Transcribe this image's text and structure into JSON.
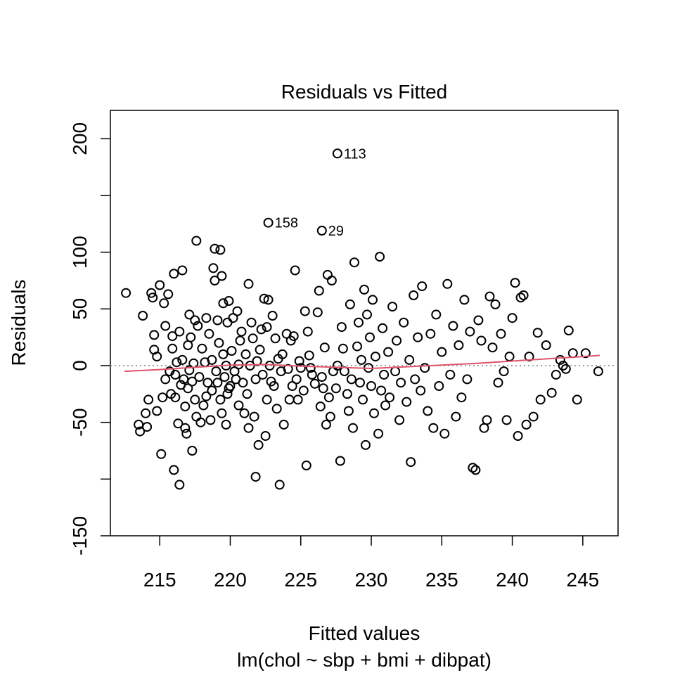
{
  "chart_data": {
    "type": "scatter",
    "title": "Residuals vs Fitted",
    "xlabel": "Fitted values",
    "subtitle": "lm(chol ~ sbp + bmi + dibpat)",
    "ylabel": "Residuals",
    "xlim": [
      211.5,
      247.5
    ],
    "ylim": [
      -150,
      225
    ],
    "x_ticks": [
      215,
      220,
      225,
      230,
      235,
      240,
      245
    ],
    "x_tick_labels": [
      "215",
      "220",
      "225",
      "230",
      "235",
      "240",
      "245"
    ],
    "y_ticks": [
      -150,
      -100,
      -50,
      0,
      50,
      100,
      150,
      200
    ],
    "y_tick_labels": [
      "-150",
      "",
      "-50",
      "0",
      "50",
      "100",
      "",
      "200"
    ],
    "grid": false,
    "colors": {
      "points": "#000000",
      "smooth": "#df536b",
      "zero_line": "#9e9e9e"
    },
    "points": [
      [
        227.6,
        187
      ],
      [
        222.7,
        126
      ],
      [
        226.5,
        119
      ],
      [
        212.6,
        64
      ],
      [
        213.5,
        -52
      ],
      [
        213.6,
        -58
      ],
      [
        213.8,
        44
      ],
      [
        214.0,
        -42
      ],
      [
        214.1,
        -54
      ],
      [
        214.2,
        -30
      ],
      [
        214.4,
        64
      ],
      [
        214.5,
        60
      ],
      [
        214.6,
        27
      ],
      [
        214.6,
        14
      ],
      [
        214.8,
        8
      ],
      [
        214.8,
        -40
      ],
      [
        215.0,
        71
      ],
      [
        215.1,
        -78
      ],
      [
        215.2,
        -28
      ],
      [
        215.3,
        55
      ],
      [
        215.4,
        35
      ],
      [
        215.4,
        -12
      ],
      [
        215.6,
        63
      ],
      [
        215.7,
        -5
      ],
      [
        215.8,
        -25
      ],
      [
        215.9,
        26
      ],
      [
        215.9,
        15
      ],
      [
        216.0,
        81
      ],
      [
        216.0,
        -92
      ],
      [
        216.1,
        -8
      ],
      [
        216.1,
        -28
      ],
      [
        216.2,
        3
      ],
      [
        216.3,
        -51
      ],
      [
        216.4,
        -105
      ],
      [
        216.4,
        30
      ],
      [
        216.5,
        -17
      ],
      [
        216.6,
        84
      ],
      [
        216.6,
        5
      ],
      [
        216.7,
        -12
      ],
      [
        216.8,
        -36
      ],
      [
        216.8,
        -55
      ],
      [
        216.9,
        -60
      ],
      [
        217.0,
        -20
      ],
      [
        217.0,
        18
      ],
      [
        217.1,
        45
      ],
      [
        217.1,
        -4
      ],
      [
        217.2,
        25
      ],
      [
        217.3,
        -75
      ],
      [
        217.3,
        -14
      ],
      [
        217.4,
        2
      ],
      [
        217.5,
        40
      ],
      [
        217.5,
        -30
      ],
      [
        217.6,
        -45
      ],
      [
        217.6,
        110
      ],
      [
        217.7,
        35
      ],
      [
        217.8,
        -10
      ],
      [
        217.9,
        -50
      ],
      [
        218.0,
        15
      ],
      [
        218.1,
        -35
      ],
      [
        218.2,
        3
      ],
      [
        218.3,
        42
      ],
      [
        218.3,
        -27
      ],
      [
        218.4,
        -15
      ],
      [
        218.5,
        28
      ],
      [
        218.6,
        -48
      ],
      [
        218.7,
        5
      ],
      [
        218.7,
        -22
      ],
      [
        218.8,
        86
      ],
      [
        218.9,
        75
      ],
      [
        218.9,
        103
      ],
      [
        219.0,
        -5
      ],
      [
        219.1,
        40
      ],
      [
        219.1,
        -15
      ],
      [
        219.2,
        20
      ],
      [
        219.3,
        102
      ],
      [
        219.3,
        -30
      ],
      [
        219.4,
        -42
      ],
      [
        219.4,
        79
      ],
      [
        219.5,
        55
      ],
      [
        219.5,
        10
      ],
      [
        219.6,
        -10
      ],
      [
        219.7,
        -52
      ],
      [
        219.7,
        0
      ],
      [
        219.8,
        -25
      ],
      [
        219.8,
        38
      ],
      [
        219.9,
        57
      ],
      [
        219.9,
        -20
      ],
      [
        220.0,
        -18
      ],
      [
        220.1,
        13
      ],
      [
        220.2,
        42
      ],
      [
        220.3,
        -5
      ],
      [
        220.4,
        -12
      ],
      [
        220.5,
        48
      ],
      [
        220.6,
        -35
      ],
      [
        220.6,
        1
      ],
      [
        220.7,
        22
      ],
      [
        220.8,
        30
      ],
      [
        220.9,
        -15
      ],
      [
        221.0,
        -42
      ],
      [
        221.1,
        10
      ],
      [
        221.2,
        -25
      ],
      [
        221.3,
        -55
      ],
      [
        221.3,
        72
      ],
      [
        221.4,
        0
      ],
      [
        221.5,
        38
      ],
      [
        221.6,
        24
      ],
      [
        221.7,
        -45
      ],
      [
        221.8,
        -98
      ],
      [
        221.8,
        -12
      ],
      [
        221.9,
        4
      ],
      [
        222.0,
        -70
      ],
      [
        222.1,
        14
      ],
      [
        222.2,
        32
      ],
      [
        222.3,
        -8
      ],
      [
        222.4,
        59
      ],
      [
        222.5,
        -62
      ],
      [
        222.6,
        34
      ],
      [
        222.6,
        -30
      ],
      [
        222.7,
        58
      ],
      [
        222.8,
        0
      ],
      [
        222.9,
        -14
      ],
      [
        223.0,
        44
      ],
      [
        223.1,
        -18
      ],
      [
        223.2,
        24
      ],
      [
        223.3,
        -38
      ],
      [
        223.4,
        6
      ],
      [
        223.5,
        -105
      ],
      [
        223.6,
        -5
      ],
      [
        223.7,
        10
      ],
      [
        223.8,
        -52
      ],
      [
        224.0,
        28
      ],
      [
        224.1,
        -3
      ],
      [
        224.2,
        -30
      ],
      [
        224.3,
        22
      ],
      [
        224.4,
        -18
      ],
      [
        224.5,
        26
      ],
      [
        224.6,
        84
      ],
      [
        224.7,
        -12
      ],
      [
        224.8,
        -30
      ],
      [
        224.9,
        4
      ],
      [
        225.0,
        -2
      ],
      [
        225.2,
        -22
      ],
      [
        225.3,
        48
      ],
      [
        225.4,
        -88
      ],
      [
        225.5,
        30
      ],
      [
        225.6,
        9
      ],
      [
        225.7,
        -2
      ],
      [
        225.8,
        -8
      ],
      [
        226.0,
        -16
      ],
      [
        226.2,
        47
      ],
      [
        226.3,
        66
      ],
      [
        226.4,
        -36
      ],
      [
        226.5,
        -10
      ],
      [
        226.6,
        -20
      ],
      [
        226.7,
        16
      ],
      [
        226.8,
        -52
      ],
      [
        226.9,
        80
      ],
      [
        227.0,
        -28
      ],
      [
        227.1,
        -45
      ],
      [
        227.2,
        75
      ],
      [
        227.3,
        -5
      ],
      [
        227.5,
        -20
      ],
      [
        227.6,
        0
      ],
      [
        227.8,
        -84
      ],
      [
        227.9,
        34
      ],
      [
        228.0,
        15
      ],
      [
        228.1,
        -5
      ],
      [
        228.3,
        -25
      ],
      [
        228.4,
        -40
      ],
      [
        228.5,
        54
      ],
      [
        228.6,
        -12
      ],
      [
        228.7,
        -55
      ],
      [
        228.8,
        91
      ],
      [
        229.0,
        17
      ],
      [
        229.1,
        38
      ],
      [
        229.2,
        -15
      ],
      [
        229.3,
        5
      ],
      [
        229.4,
        -30
      ],
      [
        229.5,
        67
      ],
      [
        229.6,
        -70
      ],
      [
        229.7,
        45
      ],
      [
        229.8,
        -2
      ],
      [
        229.9,
        25
      ],
      [
        230.0,
        -18
      ],
      [
        230.1,
        58
      ],
      [
        230.2,
        -42
      ],
      [
        230.3,
        8
      ],
      [
        230.5,
        -60
      ],
      [
        230.6,
        96
      ],
      [
        230.7,
        -22
      ],
      [
        230.8,
        33
      ],
      [
        230.9,
        -8
      ],
      [
        231.0,
        -35
      ],
      [
        231.2,
        12
      ],
      [
        231.3,
        -28
      ],
      [
        231.5,
        52
      ],
      [
        231.7,
        -5
      ],
      [
        231.8,
        22
      ],
      [
        232.0,
        -48
      ],
      [
        232.1,
        -15
      ],
      [
        232.3,
        38
      ],
      [
        232.5,
        -32
      ],
      [
        232.7,
        5
      ],
      [
        232.8,
        -85
      ],
      [
        233.0,
        62
      ],
      [
        233.1,
        -12
      ],
      [
        233.3,
        25
      ],
      [
        233.5,
        -22
      ],
      [
        233.6,
        70
      ],
      [
        233.8,
        -2
      ],
      [
        234.0,
        -40
      ],
      [
        234.2,
        28
      ],
      [
        234.4,
        -55
      ],
      [
        234.6,
        45
      ],
      [
        234.8,
        -18
      ],
      [
        235.0,
        12
      ],
      [
        235.2,
        -60
      ],
      [
        235.4,
        72
      ],
      [
        235.6,
        -8
      ],
      [
        235.8,
        35
      ],
      [
        236.0,
        -45
      ],
      [
        236.2,
        18
      ],
      [
        236.4,
        -28
      ],
      [
        236.6,
        58
      ],
      [
        236.8,
        -12
      ],
      [
        237.0,
        30
      ],
      [
        237.2,
        -90
      ],
      [
        237.4,
        -92
      ],
      [
        237.6,
        40
      ],
      [
        237.8,
        22
      ],
      [
        238.0,
        -55
      ],
      [
        238.2,
        -48
      ],
      [
        238.4,
        61
      ],
      [
        238.6,
        16
      ],
      [
        238.8,
        54
      ],
      [
        239.0,
        -15
      ],
      [
        239.2,
        28
      ],
      [
        239.4,
        -5
      ],
      [
        239.6,
        -48
      ],
      [
        239.8,
        8
      ],
      [
        240.0,
        42
      ],
      [
        240.2,
        73
      ],
      [
        240.4,
        -62
      ],
      [
        240.6,
        60
      ],
      [
        240.8,
        62
      ],
      [
        241.0,
        -52
      ],
      [
        241.2,
        8
      ],
      [
        241.5,
        -45
      ],
      [
        241.8,
        29
      ],
      [
        242.0,
        -30
      ],
      [
        242.4,
        18
      ],
      [
        242.8,
        -24
      ],
      [
        243.1,
        -8
      ],
      [
        243.4,
        5
      ],
      [
        243.6,
        0
      ],
      [
        243.8,
        -3
      ],
      [
        244.0,
        31
      ],
      [
        244.3,
        11
      ],
      [
        244.6,
        -30
      ],
      [
        245.2,
        11
      ],
      [
        246.1,
        -5
      ]
    ],
    "smooth": [
      [
        212.5,
        -5
      ],
      [
        215,
        -3.5
      ],
      [
        217.5,
        -1.5
      ],
      [
        220,
        0.5
      ],
      [
        222.5,
        1
      ],
      [
        225,
        -0.5
      ],
      [
        227.5,
        -1.5
      ],
      [
        230,
        -2.5
      ],
      [
        232.5,
        -1
      ],
      [
        235,
        0.5
      ],
      [
        237.5,
        2
      ],
      [
        240,
        4
      ],
      [
        242.5,
        6
      ],
      [
        245,
        8
      ],
      [
        246.2,
        9
      ]
    ],
    "labels": [
      {
        "x": 227.6,
        "y": 187,
        "text": "113"
      },
      {
        "x": 222.7,
        "y": 126,
        "text": "158"
      },
      {
        "x": 226.5,
        "y": 119,
        "text": "29"
      }
    ]
  }
}
